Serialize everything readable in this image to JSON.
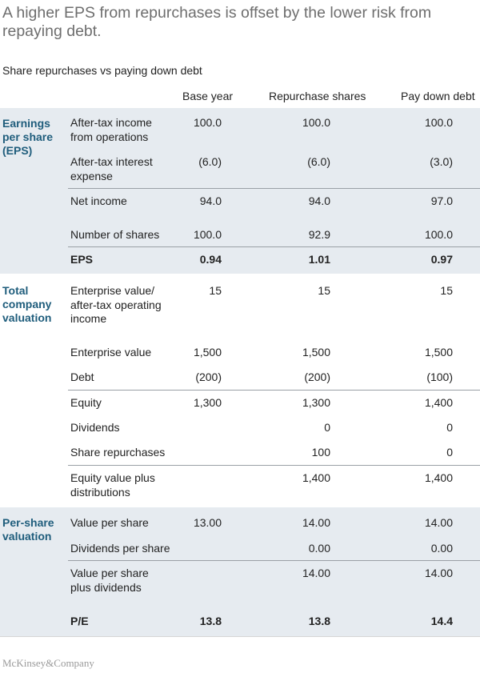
{
  "title": "A higher EPS from repurchases is offset by the lower risk from repaying debt.",
  "subtitle": "Share repurchases vs paying down debt",
  "columns": [
    "Base year",
    "Repurchase shares",
    "Pay down debt"
  ],
  "sections": {
    "eps": {
      "label_line1": "Earnings",
      "label_line2": "per share",
      "label_line3": "(EPS)",
      "rows": [
        {
          "l1": "After-tax income",
          "l2": "from operations",
          "v": [
            "100.0",
            "100.0",
            "100.0"
          ]
        },
        {
          "l1": "After-tax interest",
          "l2": "expense",
          "v": [
            "(6.0)",
            "(6.0)",
            "(3.0)"
          ]
        },
        {
          "l1": "Net income",
          "v": [
            "94.0",
            "94.0",
            "97.0"
          ]
        },
        {
          "l1": "Number of shares",
          "v": [
            "100.0",
            "92.9",
            "100.0"
          ]
        },
        {
          "l1": "EPS",
          "v": [
            "0.94",
            "1.01",
            "0.97"
          ]
        }
      ]
    },
    "total": {
      "label_line1": "Total",
      "label_line2": "company",
      "label_line3": "valuation",
      "rows": [
        {
          "l1": "Enterprise value/",
          "l2": "after-tax operating",
          "l3": "income",
          "v": [
            "15",
            "15",
            "15"
          ]
        },
        {
          "l1": "Enterprise value",
          "v": [
            "1,500",
            "1,500",
            "1,500"
          ]
        },
        {
          "l1": "Debt",
          "v": [
            "(200)",
            "(200)",
            "(100)"
          ]
        },
        {
          "l1": "Equity",
          "v": [
            "1,300",
            "1,300",
            "1,400"
          ]
        },
        {
          "l1": "Dividends",
          "v": [
            "",
            "0",
            "0"
          ]
        },
        {
          "l1": "Share repurchases",
          "v": [
            "",
            "100",
            "0"
          ]
        },
        {
          "l1": "Equity value plus",
          "l2": "distributions",
          "v": [
            "",
            "1,400",
            "1,400"
          ]
        }
      ]
    },
    "pershare": {
      "label_line1": "Per-share",
      "label_line2": "valuation",
      "rows": [
        {
          "l1": "Value per share",
          "v": [
            "13.00",
            "14.00",
            "14.00"
          ]
        },
        {
          "l1": "Dividends per share",
          "v": [
            "",
            "0.00",
            "0.00"
          ]
        },
        {
          "l1": "Value per share",
          "l2": "plus dividends",
          "v": [
            "",
            "14.00",
            "14.00"
          ]
        },
        {
          "l1": "P/E",
          "v": [
            "13.8",
            "13.8",
            "14.4"
          ]
        }
      ]
    }
  },
  "logo": "McKinsey&Company"
}
